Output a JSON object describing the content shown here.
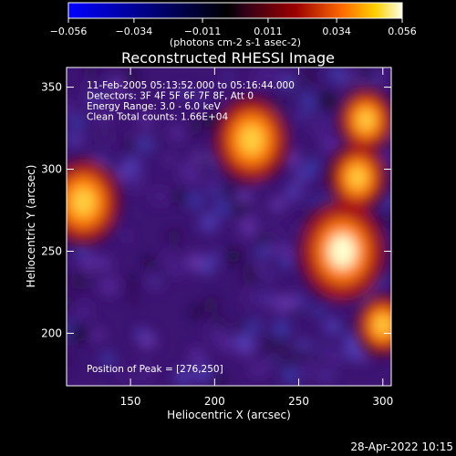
{
  "chart_data": {
    "type": "heatmap",
    "title": "Reconstructed RHESSI Image",
    "xlabel": "Heliocentric X (arcsec)",
    "ylabel": "Heliocentric Y (arcsec)",
    "xlim": [
      112,
      305
    ],
    "ylim": [
      168,
      362
    ],
    "x_ticks": [
      150,
      200,
      250,
      300
    ],
    "y_ticks": [
      200,
      250,
      300,
      350
    ],
    "colorbar": {
      "range": [
        -0.056,
        0.056
      ],
      "ticks": [
        "-0.056",
        "-0.034",
        "-0.011",
        "0.011",
        "0.034",
        "0.056"
      ],
      "label": "(photons cm-2 s-1 asec-2)"
    },
    "annotations": [
      "11-Feb-2005 05:13:52.000 to 05:16:44.000",
      "Detectors: 3F 4F 5F 6F 7F 8F, Att 0",
      "Energy Range: 3.0 - 6.0 keV",
      "Clean    Total counts: 1.66E+04"
    ],
    "peak_label": "Position of Peak = [276,250]",
    "sources": [
      {
        "x": 276,
        "y": 250,
        "intensity": 0.056
      },
      {
        "x": 222,
        "y": 318,
        "intensity": 0.046
      },
      {
        "x": 122,
        "y": 280,
        "intensity": 0.045
      },
      {
        "x": 290,
        "y": 330,
        "intensity": 0.03
      },
      {
        "x": 300,
        "y": 205,
        "intensity": 0.028
      },
      {
        "x": 285,
        "y": 295,
        "intensity": 0.032
      }
    ]
  },
  "timestamp": "28-Apr-2022 10:15"
}
